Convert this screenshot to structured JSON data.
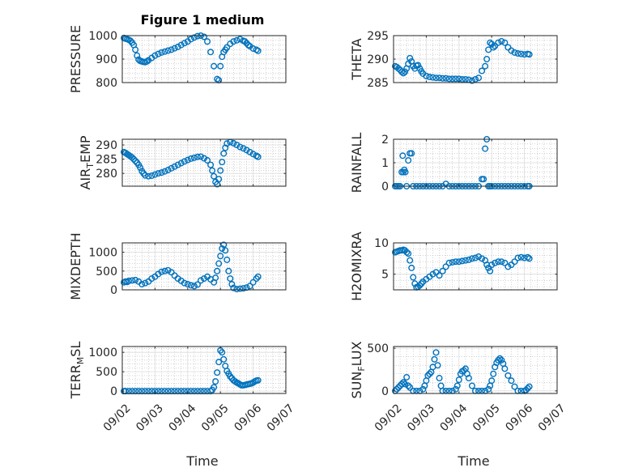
{
  "figure_title": "Figure 1 medium",
  "colors": {
    "marker": "#0072BD",
    "axis": "#262626"
  },
  "chart_data": [
    {
      "type": "scatter",
      "ylabel": "PRESSURE",
      "ylim": [
        800,
        1000
      ],
      "yticks": [
        "800",
        "900",
        "1000"
      ],
      "ytick_values": [
        800,
        900,
        1000
      ],
      "xlim": [
        0,
        5
      ],
      "x_ticklabels_shown": false,
      "x": [
        0.05,
        0.1,
        0.15,
        0.2,
        0.25,
        0.3,
        0.35,
        0.4,
        0.45,
        0.5,
        0.55,
        0.6,
        0.65,
        0.7,
        0.75,
        0.8,
        0.9,
        1.0,
        1.1,
        1.2,
        1.3,
        1.4,
        1.5,
        1.6,
        1.7,
        1.8,
        1.9,
        2.0,
        2.1,
        2.2,
        2.3,
        2.4,
        2.5,
        2.6,
        2.7,
        2.8,
        2.9,
        2.95,
        3.0,
        3.05,
        3.1,
        3.15,
        3.2,
        3.3,
        3.4,
        3.5,
        3.6,
        3.7,
        3.75,
        3.8,
        3.85,
        3.9,
        4.0,
        4.1,
        4.15
      ],
      "y": [
        990,
        987,
        985,
        982,
        978,
        970,
        960,
        940,
        915,
        898,
        892,
        890,
        888,
        887,
        890,
        895,
        905,
        915,
        922,
        928,
        932,
        936,
        940,
        946,
        952,
        960,
        968,
        975,
        985,
        992,
        998,
        1000,
        995,
        975,
        930,
        870,
        815,
        810,
        870,
        910,
        930,
        940,
        950,
        965,
        975,
        980,
        985,
        978,
        975,
        968,
        960,
        955,
        945,
        940,
        935
      ]
    },
    {
      "type": "scatter",
      "ylabel": "THETA",
      "ylim": [
        285,
        295
      ],
      "yticks": [
        "285",
        "290",
        "295"
      ],
      "ytick_values": [
        285,
        290,
        295
      ],
      "xlim": [
        0,
        5
      ],
      "x_ticklabels_shown": false,
      "x": [
        0.05,
        0.1,
        0.15,
        0.2,
        0.25,
        0.3,
        0.35,
        0.4,
        0.45,
        0.5,
        0.55,
        0.6,
        0.65,
        0.7,
        0.75,
        0.8,
        0.85,
        0.9,
        1.0,
        1.1,
        1.2,
        1.3,
        1.4,
        1.5,
        1.6,
        1.7,
        1.8,
        1.9,
        2.0,
        2.1,
        2.2,
        2.3,
        2.4,
        2.5,
        2.6,
        2.7,
        2.8,
        2.85,
        2.9,
        2.95,
        3.0,
        3.05,
        3.1,
        3.2,
        3.3,
        3.4,
        3.5,
        3.6,
        3.7,
        3.8,
        3.9,
        4.0,
        4.1,
        4.15
      ],
      "y": [
        288.5,
        288.3,
        288.0,
        287.7,
        287.3,
        287.0,
        287.3,
        288.0,
        289.0,
        290.2,
        289.5,
        288.5,
        288.0,
        288.6,
        288.7,
        288.0,
        287.4,
        286.9,
        286.4,
        286.2,
        286.1,
        286.0,
        286.0,
        285.9,
        285.9,
        285.8,
        285.8,
        285.8,
        285.8,
        285.7,
        285.7,
        285.6,
        285.4,
        285.7,
        286.0,
        287.5,
        288.5,
        290.0,
        292.0,
        293.5,
        293.2,
        292.5,
        292.8,
        293.5,
        293.8,
        293.5,
        292.5,
        291.8,
        291.4,
        291.2,
        291.1,
        291.0,
        291.1,
        291.0
      ]
    },
    {
      "type": "scatter",
      "ylabel": "AIR_TEMP",
      "ylabel_parts": [
        "AIR",
        "T",
        "EMP"
      ],
      "ylim": [
        275.5,
        292
      ],
      "yticks": [
        "280",
        "285",
        "290"
      ],
      "ytick_values": [
        280,
        285,
        290
      ],
      "xlim": [
        0,
        5
      ],
      "x_ticklabels_shown": false,
      "x": [
        0.05,
        0.1,
        0.15,
        0.2,
        0.25,
        0.3,
        0.35,
        0.4,
        0.45,
        0.5,
        0.55,
        0.6,
        0.65,
        0.7,
        0.8,
        0.9,
        1.0,
        1.1,
        1.2,
        1.3,
        1.4,
        1.5,
        1.6,
        1.7,
        1.8,
        1.9,
        2.0,
        2.1,
        2.2,
        2.3,
        2.4,
        2.5,
        2.6,
        2.7,
        2.75,
        2.8,
        2.85,
        2.9,
        2.95,
        3.0,
        3.05,
        3.1,
        3.15,
        3.2,
        3.3,
        3.4,
        3.5,
        3.6,
        3.7,
        3.8,
        3.9,
        4.0,
        4.1,
        4.15
      ],
      "y": [
        287.5,
        287.2,
        286.8,
        286.4,
        286.0,
        285.6,
        285.0,
        284.4,
        283.8,
        283.0,
        282.0,
        280.8,
        280.0,
        279.3,
        279.0,
        279.2,
        279.6,
        280.0,
        280.3,
        280.7,
        281.2,
        281.8,
        282.4,
        283.0,
        283.6,
        284.2,
        284.7,
        285.2,
        285.5,
        285.8,
        285.9,
        285.3,
        284.6,
        283.0,
        281.0,
        279.0,
        277.0,
        276.2,
        278.0,
        281.0,
        284.0,
        287.0,
        289.0,
        290.5,
        291.0,
        290.6,
        290.0,
        289.3,
        288.8,
        288.2,
        287.5,
        286.8,
        286.2,
        285.8
      ]
    },
    {
      "type": "scatter",
      "ylabel": "RAINFALL",
      "ylim": [
        0,
        2
      ],
      "yticks": [
        "0",
        "1",
        "2"
      ],
      "ytick_values": [
        0,
        1,
        2
      ],
      "xlim": [
        0,
        5
      ],
      "x_ticklabels_shown": false,
      "x": [
        0.05,
        0.1,
        0.15,
        0.2,
        0.25,
        0.28,
        0.3,
        0.33,
        0.36,
        0.4,
        0.45,
        0.5,
        0.55,
        0.6,
        0.7,
        0.8,
        0.9,
        1.0,
        1.1,
        1.2,
        1.3,
        1.4,
        1.5,
        1.6,
        1.7,
        1.8,
        1.9,
        2.0,
        2.1,
        2.2,
        2.3,
        2.4,
        2.5,
        2.6,
        2.7,
        2.75,
        2.8,
        2.85,
        2.9,
        2.95,
        3.0,
        3.1,
        3.2,
        3.3,
        3.4,
        3.5,
        3.6,
        3.7,
        3.8,
        3.9,
        4.0,
        4.1,
        4.15
      ],
      "y": [
        0,
        0,
        0,
        0,
        0.6,
        1.3,
        0.6,
        0.7,
        0.6,
        0,
        1.1,
        1.4,
        1.4,
        0,
        0,
        0,
        0,
        0,
        0,
        0,
        0,
        0,
        0,
        0.1,
        0,
        0,
        0,
        0,
        0,
        0,
        0,
        0,
        0,
        0,
        0.3,
        0.3,
        1.6,
        2.0,
        0,
        0,
        0,
        0,
        0,
        0,
        0,
        0,
        0,
        0,
        0,
        0,
        0,
        0,
        0
      ]
    },
    {
      "type": "scatter",
      "ylabel": "MIXDEPTH",
      "ylim": [
        0,
        1250
      ],
      "yticks": [
        "0",
        "500",
        "1000"
      ],
      "ytick_values": [
        0,
        500,
        1000
      ],
      "xlim": [
        0,
        5
      ],
      "x_ticklabels_shown": false,
      "x": [
        0.05,
        0.1,
        0.15,
        0.2,
        0.3,
        0.4,
        0.5,
        0.6,
        0.7,
        0.8,
        0.9,
        1.0,
        1.1,
        1.2,
        1.3,
        1.4,
        1.5,
        1.6,
        1.7,
        1.8,
        1.9,
        2.0,
        2.1,
        2.2,
        2.3,
        2.4,
        2.5,
        2.6,
        2.7,
        2.8,
        2.85,
        2.9,
        2.95,
        3.0,
        3.05,
        3.1,
        3.15,
        3.2,
        3.25,
        3.3,
        3.35,
        3.4,
        3.5,
        3.6,
        3.7,
        3.8,
        3.9,
        4.0,
        4.1,
        4.15
      ],
      "y": [
        200,
        220,
        210,
        240,
        250,
        260,
        220,
        150,
        180,
        220,
        300,
        350,
        420,
        480,
        500,
        520,
        470,
        380,
        300,
        240,
        180,
        150,
        120,
        100,
        140,
        250,
        300,
        350,
        280,
        200,
        320,
        500,
        700,
        900,
        1100,
        1200,
        1050,
        800,
        500,
        300,
        150,
        50,
        20,
        30,
        40,
        60,
        100,
        200,
        300,
        350
      ]
    },
    {
      "type": "scatter",
      "ylabel": "H2OMIXRA",
      "ylim": [
        2.5,
        10
      ],
      "yticks": [
        "5",
        "10"
      ],
      "ytick_values": [
        5,
        10
      ],
      "xlim": [
        0,
        5
      ],
      "x_ticklabels_shown": false,
      "x": [
        0.05,
        0.1,
        0.15,
        0.2,
        0.25,
        0.3,
        0.35,
        0.4,
        0.45,
        0.5,
        0.55,
        0.6,
        0.65,
        0.7,
        0.75,
        0.8,
        0.85,
        0.9,
        1.0,
        1.1,
        1.2,
        1.3,
        1.4,
        1.5,
        1.6,
        1.7,
        1.8,
        1.9,
        2.0,
        2.1,
        2.2,
        2.3,
        2.4,
        2.5,
        2.6,
        2.7,
        2.8,
        2.85,
        2.9,
        2.95,
        3.0,
        3.1,
        3.2,
        3.3,
        3.4,
        3.5,
        3.6,
        3.7,
        3.8,
        3.9,
        4.0,
        4.1,
        4.15
      ],
      "y": [
        8.5,
        8.6,
        8.7,
        8.8,
        8.8,
        8.9,
        8.8,
        8.5,
        8.3,
        7.2,
        6.0,
        4.5,
        3.5,
        2.9,
        3.0,
        3.2,
        3.5,
        3.8,
        4.2,
        4.6,
        5.0,
        5.3,
        4.8,
        5.5,
        6.2,
        6.8,
        6.9,
        7.0,
        7.0,
        7.1,
        7.2,
        7.3,
        7.5,
        7.6,
        7.8,
        7.5,
        7.2,
        6.5,
        6.0,
        5.5,
        6.5,
        6.8,
        7.0,
        7.0,
        6.8,
        6.2,
        6.5,
        7.0,
        7.6,
        7.7,
        7.6,
        7.7,
        7.5
      ]
    },
    {
      "type": "scatter",
      "ylabel": "TERR_MSL",
      "ylabel_parts": [
        "TERR",
        "M",
        "SL"
      ],
      "ylim": [
        -60,
        1150
      ],
      "yticks": [
        "0",
        "500",
        "1000"
      ],
      "ytick_values": [
        0,
        500,
        1000
      ],
      "xlim": [
        0,
        5
      ],
      "xticks": [
        "09/02",
        "09/03",
        "09/04",
        "09/05",
        "09/06",
        "09/07"
      ],
      "xtick_values": [
        0,
        1,
        2,
        3,
        4,
        5
      ],
      "x_ticklabels_shown": true,
      "xlabel": "Time",
      "x": [
        0.05,
        0.1,
        0.2,
        0.3,
        0.4,
        0.5,
        0.6,
        0.7,
        0.8,
        0.9,
        1.0,
        1.1,
        1.2,
        1.3,
        1.4,
        1.5,
        1.6,
        1.7,
        1.8,
        1.9,
        2.0,
        2.1,
        2.2,
        2.3,
        2.4,
        2.5,
        2.6,
        2.7,
        2.75,
        2.8,
        2.85,
        2.9,
        2.95,
        3.0,
        3.05,
        3.1,
        3.15,
        3.2,
        3.25,
        3.3,
        3.35,
        3.4,
        3.45,
        3.5,
        3.55,
        3.6,
        3.65,
        3.7,
        3.75,
        3.8,
        3.85,
        3.9,
        3.95,
        4.0,
        4.05,
        4.1,
        4.15
      ],
      "y": [
        0,
        0,
        0,
        0,
        0,
        0,
        0,
        0,
        0,
        0,
        0,
        0,
        0,
        0,
        0,
        0,
        0,
        0,
        0,
        0,
        0,
        0,
        0,
        0,
        0,
        0,
        0,
        0,
        30,
        100,
        250,
        480,
        750,
        1050,
        1000,
        820,
        650,
        520,
        450,
        380,
        330,
        280,
        250,
        220,
        200,
        170,
        150,
        150,
        160,
        170,
        180,
        190,
        200,
        220,
        250,
        270,
        280
      ]
    },
    {
      "type": "scatter",
      "ylabel": "SUN_FLUX",
      "ylabel_parts": [
        "SUN",
        "F",
        "LUX"
      ],
      "ylim": [
        -30,
        520
      ],
      "yticks": [
        "0",
        "500"
      ],
      "ytick_values": [
        0,
        500
      ],
      "xlim": [
        0,
        5
      ],
      "xticks": [
        "09/02",
        "09/03",
        "09/04",
        "09/05",
        "09/06",
        "09/07"
      ],
      "xtick_values": [
        0,
        1,
        2,
        3,
        4,
        5
      ],
      "x_ticklabels_shown": true,
      "xlabel": "Time",
      "x": [
        0.05,
        0.1,
        0.15,
        0.2,
        0.25,
        0.3,
        0.35,
        0.4,
        0.45,
        0.5,
        0.6,
        0.7,
        0.8,
        0.9,
        0.95,
        1.0,
        1.05,
        1.1,
        1.15,
        1.2,
        1.25,
        1.3,
        1.35,
        1.4,
        1.45,
        1.5,
        1.6,
        1.7,
        1.8,
        1.9,
        1.95,
        2.0,
        2.05,
        2.1,
        2.15,
        2.2,
        2.25,
        2.3,
        2.4,
        2.5,
        2.6,
        2.7,
        2.8,
        2.9,
        2.95,
        3.0,
        3.05,
        3.1,
        3.15,
        3.2,
        3.25,
        3.3,
        3.35,
        3.4,
        3.5,
        3.6,
        3.7,
        3.8,
        3.9,
        4.0,
        4.05,
        4.1,
        4.15
      ],
      "y": [
        0,
        20,
        40,
        60,
        80,
        100,
        80,
        160,
        60,
        40,
        0,
        0,
        0,
        20,
        60,
        120,
        180,
        200,
        220,
        280,
        370,
        450,
        300,
        150,
        60,
        0,
        0,
        0,
        0,
        20,
        60,
        130,
        200,
        230,
        240,
        260,
        200,
        150,
        60,
        0,
        0,
        0,
        0,
        20,
        60,
        120,
        200,
        280,
        330,
        360,
        380,
        360,
        320,
        260,
        180,
        120,
        50,
        0,
        0,
        0,
        10,
        30,
        50
      ]
    }
  ]
}
